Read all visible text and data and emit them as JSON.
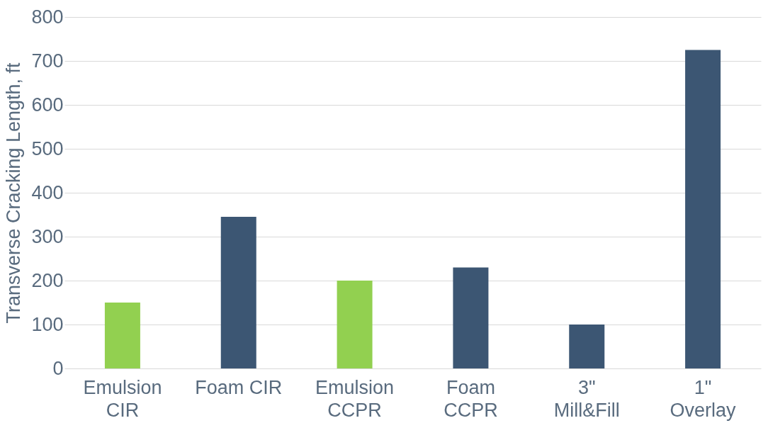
{
  "chart_data": {
    "type": "bar",
    "ylabel": "Transverse Cracking Length, ft",
    "categories": [
      "Emulsion\nCIR",
      "Foam CIR",
      "Emulsion\nCCPR",
      "Foam\nCCPR",
      "3\"\nMill&Fill",
      "1\"\nOverlay"
    ],
    "values": [
      150,
      345,
      200,
      230,
      100,
      725
    ],
    "colors": [
      "#92d050",
      "#3c5673",
      "#92d050",
      "#3c5673",
      "#3c5673",
      "#3c5673"
    ],
    "ylim": [
      0,
      800
    ],
    "yticks": [
      0,
      100,
      200,
      300,
      400,
      500,
      600,
      700,
      800
    ],
    "grid": "y"
  }
}
